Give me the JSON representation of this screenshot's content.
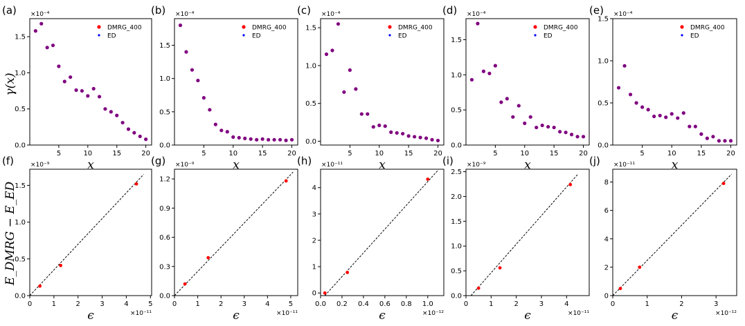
{
  "figure": {
    "y_label_top": "γ(x)",
    "y_label_bottom": "E_DMRG − E_ED",
    "x_label_top": "x",
    "x_label_bottom": "ϵ"
  },
  "legend": {
    "dmrg": "DMRG_400",
    "ed": "ED"
  },
  "colors": {
    "dmrg": "#ff0000",
    "ed": "#0000ff",
    "overlap": "#800080",
    "fit": "#000000"
  },
  "chart_data": [
    {
      "panel": "(a)",
      "type": "scatter",
      "scale_label": "×10⁻⁴",
      "xlabel": "x",
      "ylabel": "γ(x)",
      "xlim": [
        0,
        21
      ],
      "ylim": [
        0,
        1.75
      ],
      "xticks": [
        5,
        10,
        15,
        20
      ],
      "xtick_labels": [
        "5",
        "10",
        "15",
        "20"
      ],
      "yticks": [
        0,
        0.5,
        1.0,
        1.5
      ],
      "ytick_labels": [
        "0.0",
        "0.5",
        "1.0",
        "1.5"
      ],
      "legend": true,
      "series": [
        {
          "name": "DMRG_400",
          "x": [
            1,
            2,
            3,
            4,
            5,
            6,
            7,
            8,
            9,
            10,
            11,
            12,
            13,
            14,
            15,
            16,
            17,
            18,
            19,
            20
          ],
          "y": [
            1.58,
            1.68,
            1.35,
            1.38,
            1.09,
            0.88,
            0.94,
            0.76,
            0.75,
            0.68,
            0.78,
            0.67,
            0.5,
            0.46,
            0.41,
            0.31,
            0.22,
            0.17,
            0.12,
            0.08
          ]
        },
        {
          "name": "ED",
          "x": [
            1,
            2,
            3,
            4,
            5,
            6,
            7,
            8,
            9,
            10,
            11,
            12,
            13,
            14,
            15,
            16,
            17,
            18,
            19,
            20
          ],
          "y": [
            1.58,
            1.68,
            1.35,
            1.38,
            1.09,
            0.88,
            0.94,
            0.76,
            0.75,
            0.68,
            0.78,
            0.67,
            0.5,
            0.46,
            0.41,
            0.31,
            0.22,
            0.17,
            0.12,
            0.08
          ]
        }
      ]
    },
    {
      "panel": "(b)",
      "type": "scatter",
      "scale_label": "×10⁻⁴",
      "xlabel": "x",
      "ylabel": "",
      "xlim": [
        0,
        21
      ],
      "ylim": [
        0,
        1.9
      ],
      "xticks": [
        5,
        10,
        15,
        20
      ],
      "xtick_labels": [
        "5",
        "10",
        "15",
        "20"
      ],
      "yticks": [
        0,
        0.5,
        1.0,
        1.5
      ],
      "ytick_labels": [
        "0.0",
        "0.5",
        "1.0",
        "1.5"
      ],
      "legend": true,
      "series": [
        {
          "name": "DMRG_400",
          "x": [
            1,
            2,
            3,
            4,
            5,
            6,
            7,
            8,
            9,
            10,
            11,
            12,
            13,
            14,
            15,
            16,
            17,
            18,
            19,
            20
          ],
          "y": [
            1.8,
            1.4,
            1.13,
            0.97,
            0.71,
            0.53,
            0.31,
            0.22,
            0.2,
            0.12,
            0.11,
            0.1,
            0.09,
            0.08,
            0.09,
            0.08,
            0.08,
            0.08,
            0.07,
            0.08
          ]
        },
        {
          "name": "ED",
          "x": [
            1,
            2,
            3,
            4,
            5,
            6,
            7,
            8,
            9,
            10,
            11,
            12,
            13,
            14,
            15,
            16,
            17,
            18,
            19,
            20
          ],
          "y": [
            1.8,
            1.4,
            1.13,
            0.97,
            0.71,
            0.53,
            0.31,
            0.22,
            0.2,
            0.12,
            0.11,
            0.1,
            0.09,
            0.08,
            0.09,
            0.08,
            0.08,
            0.08,
            0.07,
            0.08
          ]
        }
      ]
    },
    {
      "panel": "(c)",
      "type": "scatter",
      "scale_label": "×10⁻⁴",
      "xlabel": "x",
      "ylabel": "",
      "xlim": [
        0,
        21
      ],
      "ylim": [
        -0.05,
        1.62
      ],
      "xticks": [
        5,
        10,
        15,
        20
      ],
      "xtick_labels": [
        "5",
        "10",
        "15",
        "20"
      ],
      "yticks": [
        0,
        0.5,
        1.0,
        1.5
      ],
      "ytick_labels": [
        "0.0",
        "0.5",
        "1.0",
        "1.5"
      ],
      "legend": true,
      "series": [
        {
          "name": "DMRG_400",
          "x": [
            1,
            2,
            3,
            4,
            5,
            6,
            7,
            8,
            9,
            10,
            11,
            12,
            13,
            14,
            15,
            16,
            17,
            18,
            19,
            20
          ],
          "y": [
            1.15,
            1.2,
            1.55,
            0.65,
            0.94,
            0.69,
            0.36,
            0.36,
            0.19,
            0.21,
            0.2,
            0.12,
            0.11,
            0.1,
            0.07,
            0.06,
            0.05,
            0.04,
            0.02,
            0.01
          ]
        },
        {
          "name": "ED",
          "x": [
            1,
            2,
            3,
            4,
            5,
            6,
            7,
            8,
            9,
            10,
            11,
            12,
            13,
            14,
            15,
            16,
            17,
            18,
            19,
            20
          ],
          "y": [
            1.15,
            1.2,
            1.55,
            0.65,
            0.94,
            0.69,
            0.36,
            0.36,
            0.19,
            0.21,
            0.2,
            0.12,
            0.11,
            0.1,
            0.07,
            0.06,
            0.05,
            0.04,
            0.02,
            0.01
          ]
        }
      ]
    },
    {
      "panel": "(d)",
      "type": "scatter",
      "scale_label": "×10⁻⁴",
      "xlabel": "x",
      "ylabel": "",
      "xlim": [
        0,
        21
      ],
      "ylim": [
        0,
        1.8
      ],
      "xticks": [
        5,
        10,
        15,
        20
      ],
      "xtick_labels": [
        "5",
        "10",
        "15",
        "20"
      ],
      "yticks": [
        0,
        0.5,
        1.0,
        1.5
      ],
      "ytick_labels": [
        "0.0",
        "0.5",
        "1.0",
        "1.5"
      ],
      "legend": true,
      "series": [
        {
          "name": "DMRG_400",
          "x": [
            1,
            2,
            3,
            4,
            5,
            6,
            7,
            8,
            9,
            10,
            11,
            12,
            13,
            14,
            15,
            16,
            17,
            18,
            19,
            20
          ],
          "y": [
            0.93,
            1.73,
            1.05,
            1.02,
            1.13,
            0.61,
            0.66,
            0.4,
            0.56,
            0.31,
            0.4,
            0.25,
            0.28,
            0.26,
            0.25,
            0.19,
            0.18,
            0.15,
            0.12,
            0.12
          ]
        },
        {
          "name": "ED",
          "x": [
            1,
            2,
            3,
            4,
            5,
            6,
            7,
            8,
            9,
            10,
            11,
            12,
            13,
            14,
            15,
            16,
            17,
            18,
            19,
            20
          ],
          "y": [
            0.93,
            1.73,
            1.05,
            1.02,
            1.13,
            0.61,
            0.66,
            0.4,
            0.56,
            0.31,
            0.4,
            0.25,
            0.28,
            0.26,
            0.25,
            0.19,
            0.18,
            0.15,
            0.12,
            0.12
          ]
        }
      ]
    },
    {
      "panel": "(e)",
      "type": "scatter",
      "scale_label": "×10⁻⁴",
      "xlabel": "x",
      "ylabel": "",
      "xlim": [
        0,
        21
      ],
      "ylim": [
        0,
        1.5
      ],
      "xticks": [
        5,
        10,
        15,
        20
      ],
      "xtick_labels": [
        "5",
        "10",
        "15",
        "20"
      ],
      "yticks": [
        0,
        0.5,
        1.0,
        1.5
      ],
      "ytick_labels": [
        "0.0",
        "0.5",
        "1.0",
        "1.5"
      ],
      "legend": true,
      "series": [
        {
          "name": "DMRG_400",
          "x": [
            1,
            2,
            3,
            4,
            5,
            6,
            7,
            8,
            9,
            10,
            11,
            12,
            13,
            14,
            15,
            16,
            17,
            18,
            19,
            20
          ],
          "y": [
            0.68,
            0.94,
            0.6,
            0.5,
            0.45,
            0.42,
            0.34,
            0.35,
            0.33,
            0.37,
            0.32,
            0.38,
            0.22,
            0.22,
            0.13,
            0.08,
            0.1,
            0.05,
            0.05,
            0.05
          ]
        },
        {
          "name": "ED",
          "x": [
            1,
            2,
            3,
            4,
            5,
            6,
            7,
            8,
            9,
            10,
            11,
            12,
            13,
            14,
            15,
            16,
            17,
            18,
            19,
            20
          ],
          "y": [
            0.68,
            0.94,
            0.6,
            0.5,
            0.45,
            0.42,
            0.34,
            0.35,
            0.33,
            0.37,
            0.32,
            0.38,
            0.22,
            0.22,
            0.13,
            0.08,
            0.1,
            0.05,
            0.05,
            0.05
          ]
        }
      ]
    },
    {
      "panel": "(f)",
      "type": "scatter",
      "scale_label": "×10⁻⁹",
      "xscale_label": "×10⁻¹¹",
      "xlabel": "ϵ",
      "ylabel": "E_DMRG − E_ED",
      "xlim": [
        0,
        5.05
      ],
      "ylim": [
        0,
        1.72
      ],
      "xticks": [
        0,
        1,
        2,
        3,
        4,
        5
      ],
      "xtick_labels": [
        "0",
        "1",
        "2",
        "3",
        "4",
        "5"
      ],
      "yticks": [
        0,
        0.5,
        1.0,
        1.5
      ],
      "ytick_labels": [
        "0.0",
        "0.5",
        "1.0",
        "1.5"
      ],
      "legend": false,
      "series": [
        {
          "name": "DMRG_400",
          "x": [
            0.42,
            1.28,
            4.42
          ],
          "y": [
            0.13,
            0.41,
            1.52
          ]
        }
      ],
      "fit": {
        "x": [
          0,
          4.72
        ],
        "y": [
          0,
          1.65
        ]
      }
    },
    {
      "panel": "(g)",
      "type": "scatter",
      "scale_label": "×10⁻⁹",
      "xscale_label": "×10⁻¹¹",
      "xlabel": "ϵ",
      "ylabel": "",
      "xlim": [
        0,
        5.3
      ],
      "ylim": [
        0,
        1.3
      ],
      "xticks": [
        0,
        1,
        2,
        3,
        4,
        5
      ],
      "xtick_labels": [
        "0",
        "1",
        "2",
        "3",
        "4",
        "5"
      ],
      "yticks": [
        0,
        0.3,
        0.6,
        0.9,
        1.2
      ],
      "ytick_labels": [
        "0.0",
        "0.3",
        "0.6",
        "0.9",
        "1.2"
      ],
      "legend": false,
      "series": [
        {
          "name": "DMRG_400",
          "x": [
            0.45,
            1.45,
            4.8
          ],
          "y": [
            0.12,
            0.39,
            1.18
          ]
        }
      ],
      "fit": {
        "x": [
          0,
          5.1
        ],
        "y": [
          0,
          1.27
        ]
      }
    },
    {
      "panel": "(h)",
      "type": "scatter",
      "scale_label": "×10⁻¹¹",
      "xscale_label": "×10⁻¹²",
      "xlabel": "ϵ",
      "ylabel": "",
      "xlim": [
        0,
        1.15
      ],
      "ylim": [
        -0.1,
        4.7
      ],
      "xticks": [
        0,
        0.2,
        0.4,
        0.6,
        0.8,
        1.0
      ],
      "xtick_labels": [
        "0.0",
        "0.2",
        "0.4",
        "0.6",
        "0.8",
        "1.0"
      ],
      "yticks": [
        0,
        1,
        2,
        3,
        4
      ],
      "ytick_labels": [
        "0",
        "1",
        "2",
        "3",
        "4"
      ],
      "legend": false,
      "series": [
        {
          "name": "DMRG_400",
          "x": [
            0.04,
            0.25,
            1.0
          ],
          "y": [
            0.0,
            0.78,
            4.32
          ]
        }
      ],
      "fit": {
        "x": [
          0.04,
          1.1
        ],
        "y": [
          -0.1,
          4.68
        ]
      }
    },
    {
      "panel": "(i)",
      "type": "scatter",
      "scale_label": "×10⁻⁹",
      "xscale_label": "×10⁻¹¹",
      "xlabel": "ϵ",
      "ylabel": "",
      "xlim": [
        0,
        4.9
      ],
      "ylim": [
        0,
        2.55
      ],
      "xticks": [
        0,
        1,
        2,
        3,
        4
      ],
      "xtick_labels": [
        "0",
        "1",
        "2",
        "3",
        "4"
      ],
      "yticks": [
        0,
        0.5,
        1.0,
        1.5,
        2.0,
        2.5
      ],
      "ytick_labels": [
        "0.0",
        "0.5",
        "1.0",
        "1.5",
        "2.0",
        "2.5"
      ],
      "legend": false,
      "series": [
        {
          "name": "DMRG_400",
          "x": [
            0.5,
            1.35,
            4.15
          ],
          "y": [
            0.15,
            0.56,
            2.24
          ]
        }
      ],
      "fit": {
        "x": [
          0.2,
          4.45
        ],
        "y": [
          0,
          2.45
        ]
      }
    },
    {
      "panel": "(j)",
      "type": "scatter",
      "scale_label": "×10⁻¹¹",
      "xscale_label": "×10⁻¹²",
      "xlabel": "ϵ",
      "ylabel": "",
      "xlim": [
        0,
        3.6
      ],
      "ylim": [
        0,
        8.9
      ],
      "xticks": [
        0,
        1,
        2,
        3
      ],
      "xtick_labels": [
        "0",
        "1",
        "2",
        "3"
      ],
      "yticks": [
        0,
        2,
        4,
        6,
        8
      ],
      "ytick_labels": [
        "0",
        "2",
        "4",
        "6",
        "8"
      ],
      "legend": false,
      "series": [
        {
          "name": "DMRG_400",
          "x": [
            0.22,
            0.78,
            3.22
          ],
          "y": [
            0.5,
            2.0,
            7.9
          ]
        }
      ],
      "fit": {
        "x": [
          0,
          3.45
        ],
        "y": [
          0,
          8.55
        ]
      }
    }
  ]
}
